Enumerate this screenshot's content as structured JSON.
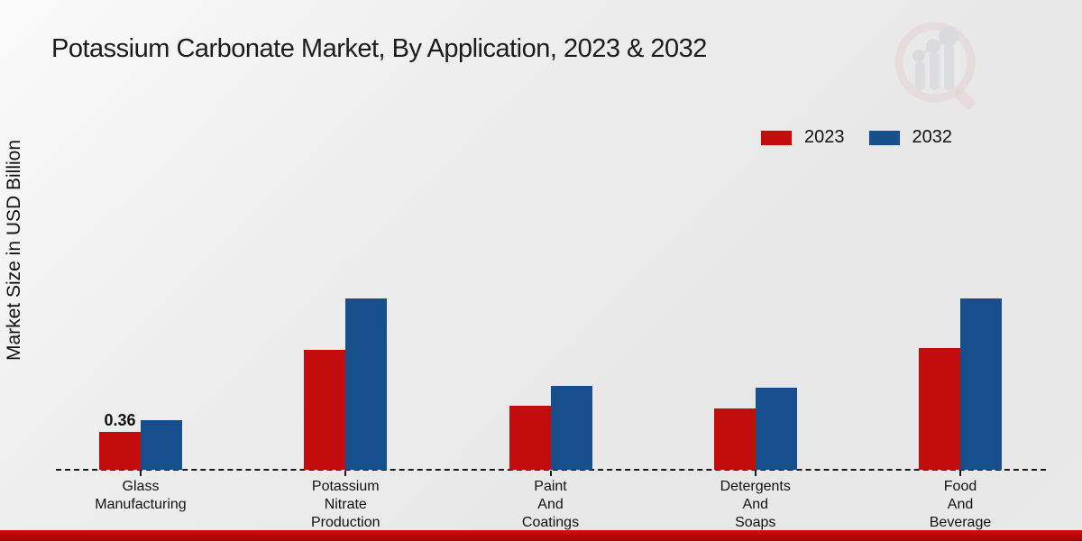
{
  "page": {
    "title": "Potassium Carbonate Market, By Application, 2023 & 2032"
  },
  "legend": {
    "items": [
      {
        "label": "2023",
        "color": "#c30c0c"
      },
      {
        "label": "2032",
        "color": "#164f8c"
      }
    ]
  },
  "chart_data": {
    "type": "bar",
    "title": "Potassium Carbonate Market, By Application, 2023 & 2032",
    "xlabel": "",
    "ylabel": "Market Size in USD Billion",
    "categories": [
      "Glass\nManufacturing",
      "Potassium\nNitrate\nProduction",
      "Paint\nAnd\nCoatings",
      "Detergents\nAnd\nSoaps",
      "Food\nAnd\nBeverage"
    ],
    "series": [
      {
        "name": "2023",
        "color": "#c30c0c",
        "values": [
          0.36,
          1.14,
          0.61,
          0.58,
          1.16
        ]
      },
      {
        "name": "2032",
        "color": "#164f8c",
        "values": [
          0.47,
          1.63,
          0.8,
          0.78,
          1.63
        ]
      }
    ],
    "annotations": [
      {
        "category_index": 0,
        "series": "2023",
        "text": "0.36"
      }
    ],
    "ylim": [
      0,
      2.0
    ],
    "grid": false,
    "legend_position": "top-right",
    "baseline_style": "dashed"
  },
  "watermark": {
    "name": "market-research-magnifier-logo"
  },
  "footer": {
    "accent_color": "#b80808"
  }
}
